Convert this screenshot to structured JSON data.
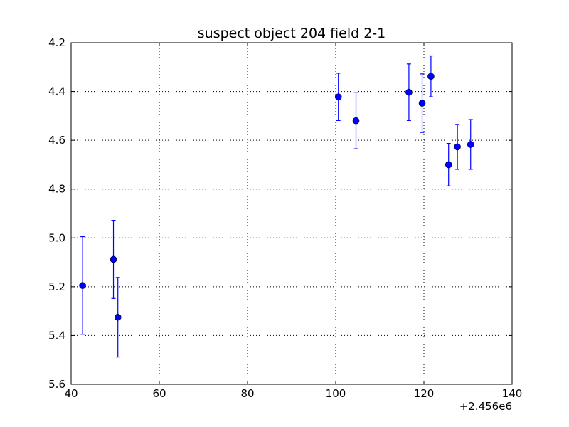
{
  "chart_data": {
    "type": "scatter",
    "title": "suspect object 204 field 2-1",
    "xlabel": "",
    "ylabel": "",
    "x_offset_label": "+2.456e6",
    "xlim": [
      40,
      140
    ],
    "ylim": [
      5.6,
      4.2
    ],
    "y_inverted": true,
    "grid": true,
    "x_ticks": [
      40,
      60,
      80,
      100,
      120,
      140
    ],
    "x_tick_labels": [
      "40",
      "60",
      "80",
      "100",
      "120",
      "140"
    ],
    "y_ticks": [
      4.2,
      4.4,
      4.6,
      4.8,
      5.0,
      5.2,
      5.4,
      5.6
    ],
    "y_tick_labels": [
      "4.2",
      "4.4",
      "4.6",
      "4.8",
      "5.0",
      "5.2",
      "5.4",
      "5.6"
    ],
    "marker_color": "#0000ff",
    "points": [
      {
        "x": 42.6,
        "y": 5.195,
        "err": 0.2
      },
      {
        "x": 49.6,
        "y": 5.088,
        "err": 0.16
      },
      {
        "x": 50.6,
        "y": 5.325,
        "err": 0.163
      },
      {
        "x": 100.6,
        "y": 4.422,
        "err": 0.097
      },
      {
        "x": 104.6,
        "y": 4.52,
        "err": 0.115
      },
      {
        "x": 116.6,
        "y": 4.403,
        "err": 0.116
      },
      {
        "x": 119.6,
        "y": 4.448,
        "err": 0.12
      },
      {
        "x": 121.6,
        "y": 4.338,
        "err": 0.084
      },
      {
        "x": 125.6,
        "y": 4.7,
        "err": 0.087
      },
      {
        "x": 127.6,
        "y": 4.627,
        "err": 0.092
      },
      {
        "x": 130.6,
        "y": 4.617,
        "err": 0.102
      }
    ]
  }
}
